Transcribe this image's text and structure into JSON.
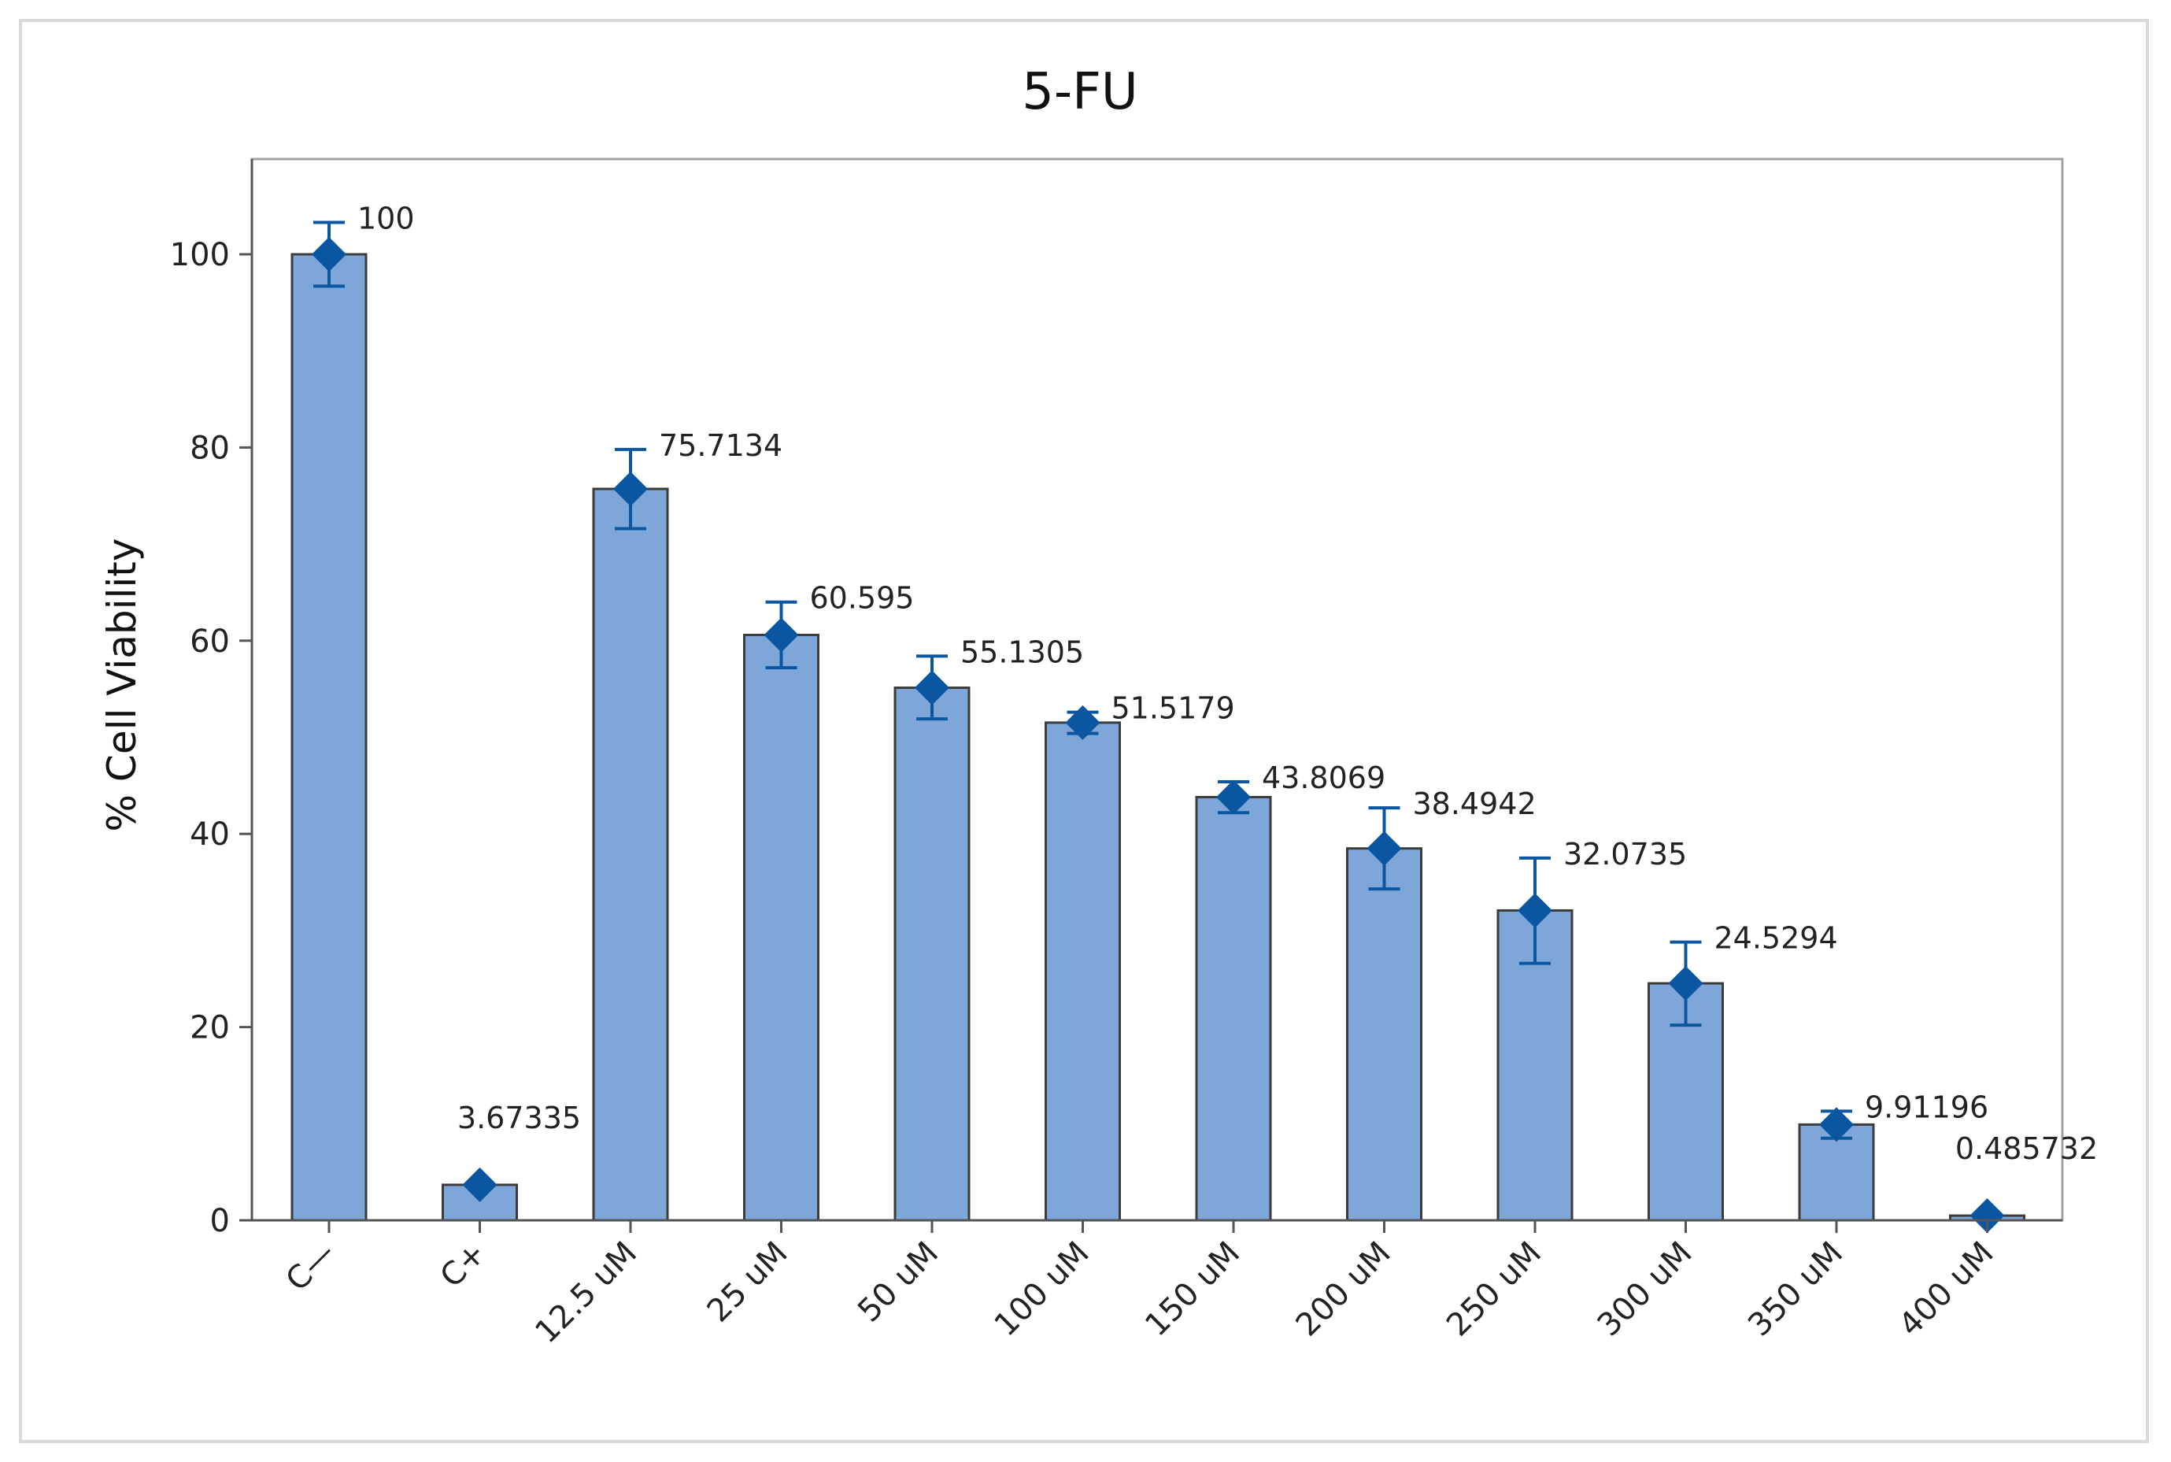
{
  "chart_data": {
    "type": "bar",
    "title": "5-FU",
    "xlabel": "",
    "ylabel": "% Cell Viability",
    "ylim": [
      0,
      110
    ],
    "yticks": [
      0,
      20,
      40,
      60,
      80,
      100
    ],
    "grid": false,
    "legend": "none",
    "categories": [
      "C—",
      "C+",
      "12.5 uM",
      "25 uM",
      "50 uM",
      "100 uM",
      "150 uM",
      "200 uM",
      "250 uM",
      "300 uM",
      "350 uM",
      "400 uM"
    ],
    "values": [
      100,
      3.67335,
      75.7134,
      60.595,
      55.1305,
      51.5179,
      43.8069,
      38.4942,
      32.0735,
      24.5294,
      9.91196,
      0.485732
    ],
    "value_labels": [
      "100",
      "3.67335",
      "75.7134",
      "60.595",
      "55.1305",
      "51.5179",
      "43.8069",
      "38.4942",
      "32.0735",
      "24.5294",
      "9.91196",
      "0.485732"
    ],
    "error_upper": [
      103.3,
      3.67335,
      79.8,
      64.0,
      58.4,
      52.6,
      45.4,
      42.7,
      37.5,
      28.8,
      11.3,
      0.485732
    ],
    "error_lower": [
      96.7,
      3.67335,
      71.6,
      57.2,
      51.9,
      50.4,
      42.2,
      34.3,
      26.6,
      20.2,
      8.5,
      0.485732
    ],
    "colors": {
      "bar_fill": "#7ea6d8",
      "bar_edge": "#3c3c3c",
      "marker": "#0a56a0",
      "axis": "#555555",
      "frame": "#a0a0a0"
    }
  }
}
